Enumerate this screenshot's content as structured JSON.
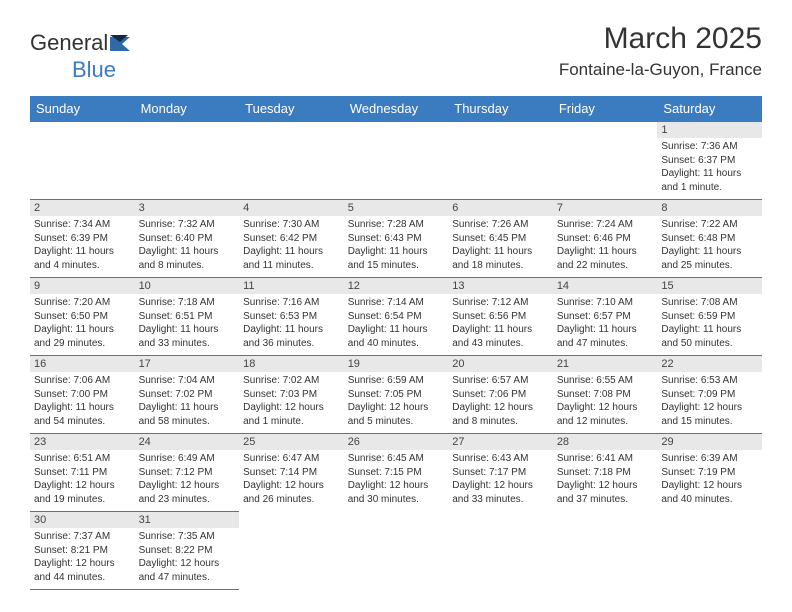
{
  "logo": {
    "part1": "General",
    "part2": "Blue"
  },
  "header": {
    "month_title": "March 2025",
    "location": "Fontaine-la-Guyon, France"
  },
  "colors": {
    "header_bg": "#3b7bbf",
    "header_fg": "#ffffff",
    "daynum_bg": "#e8e8e8",
    "border": "#3b7bbf"
  },
  "weekdays": [
    "Sunday",
    "Monday",
    "Tuesday",
    "Wednesday",
    "Thursday",
    "Friday",
    "Saturday"
  ],
  "weeks": [
    [
      null,
      null,
      null,
      null,
      null,
      null,
      {
        "n": "1",
        "sr": "Sunrise: 7:36 AM",
        "ss": "Sunset: 6:37 PM",
        "dl": "Daylight: 11 hours and 1 minute."
      }
    ],
    [
      {
        "n": "2",
        "sr": "Sunrise: 7:34 AM",
        "ss": "Sunset: 6:39 PM",
        "dl": "Daylight: 11 hours and 4 minutes."
      },
      {
        "n": "3",
        "sr": "Sunrise: 7:32 AM",
        "ss": "Sunset: 6:40 PM",
        "dl": "Daylight: 11 hours and 8 minutes."
      },
      {
        "n": "4",
        "sr": "Sunrise: 7:30 AM",
        "ss": "Sunset: 6:42 PM",
        "dl": "Daylight: 11 hours and 11 minutes."
      },
      {
        "n": "5",
        "sr": "Sunrise: 7:28 AM",
        "ss": "Sunset: 6:43 PM",
        "dl": "Daylight: 11 hours and 15 minutes."
      },
      {
        "n": "6",
        "sr": "Sunrise: 7:26 AM",
        "ss": "Sunset: 6:45 PM",
        "dl": "Daylight: 11 hours and 18 minutes."
      },
      {
        "n": "7",
        "sr": "Sunrise: 7:24 AM",
        "ss": "Sunset: 6:46 PM",
        "dl": "Daylight: 11 hours and 22 minutes."
      },
      {
        "n": "8",
        "sr": "Sunrise: 7:22 AM",
        "ss": "Sunset: 6:48 PM",
        "dl": "Daylight: 11 hours and 25 minutes."
      }
    ],
    [
      {
        "n": "9",
        "sr": "Sunrise: 7:20 AM",
        "ss": "Sunset: 6:50 PM",
        "dl": "Daylight: 11 hours and 29 minutes."
      },
      {
        "n": "10",
        "sr": "Sunrise: 7:18 AM",
        "ss": "Sunset: 6:51 PM",
        "dl": "Daylight: 11 hours and 33 minutes."
      },
      {
        "n": "11",
        "sr": "Sunrise: 7:16 AM",
        "ss": "Sunset: 6:53 PM",
        "dl": "Daylight: 11 hours and 36 minutes."
      },
      {
        "n": "12",
        "sr": "Sunrise: 7:14 AM",
        "ss": "Sunset: 6:54 PM",
        "dl": "Daylight: 11 hours and 40 minutes."
      },
      {
        "n": "13",
        "sr": "Sunrise: 7:12 AM",
        "ss": "Sunset: 6:56 PM",
        "dl": "Daylight: 11 hours and 43 minutes."
      },
      {
        "n": "14",
        "sr": "Sunrise: 7:10 AM",
        "ss": "Sunset: 6:57 PM",
        "dl": "Daylight: 11 hours and 47 minutes."
      },
      {
        "n": "15",
        "sr": "Sunrise: 7:08 AM",
        "ss": "Sunset: 6:59 PM",
        "dl": "Daylight: 11 hours and 50 minutes."
      }
    ],
    [
      {
        "n": "16",
        "sr": "Sunrise: 7:06 AM",
        "ss": "Sunset: 7:00 PM",
        "dl": "Daylight: 11 hours and 54 minutes."
      },
      {
        "n": "17",
        "sr": "Sunrise: 7:04 AM",
        "ss": "Sunset: 7:02 PM",
        "dl": "Daylight: 11 hours and 58 minutes."
      },
      {
        "n": "18",
        "sr": "Sunrise: 7:02 AM",
        "ss": "Sunset: 7:03 PM",
        "dl": "Daylight: 12 hours and 1 minute."
      },
      {
        "n": "19",
        "sr": "Sunrise: 6:59 AM",
        "ss": "Sunset: 7:05 PM",
        "dl": "Daylight: 12 hours and 5 minutes."
      },
      {
        "n": "20",
        "sr": "Sunrise: 6:57 AM",
        "ss": "Sunset: 7:06 PM",
        "dl": "Daylight: 12 hours and 8 minutes."
      },
      {
        "n": "21",
        "sr": "Sunrise: 6:55 AM",
        "ss": "Sunset: 7:08 PM",
        "dl": "Daylight: 12 hours and 12 minutes."
      },
      {
        "n": "22",
        "sr": "Sunrise: 6:53 AM",
        "ss": "Sunset: 7:09 PM",
        "dl": "Daylight: 12 hours and 15 minutes."
      }
    ],
    [
      {
        "n": "23",
        "sr": "Sunrise: 6:51 AM",
        "ss": "Sunset: 7:11 PM",
        "dl": "Daylight: 12 hours and 19 minutes."
      },
      {
        "n": "24",
        "sr": "Sunrise: 6:49 AM",
        "ss": "Sunset: 7:12 PM",
        "dl": "Daylight: 12 hours and 23 minutes."
      },
      {
        "n": "25",
        "sr": "Sunrise: 6:47 AM",
        "ss": "Sunset: 7:14 PM",
        "dl": "Daylight: 12 hours and 26 minutes."
      },
      {
        "n": "26",
        "sr": "Sunrise: 6:45 AM",
        "ss": "Sunset: 7:15 PM",
        "dl": "Daylight: 12 hours and 30 minutes."
      },
      {
        "n": "27",
        "sr": "Sunrise: 6:43 AM",
        "ss": "Sunset: 7:17 PM",
        "dl": "Daylight: 12 hours and 33 minutes."
      },
      {
        "n": "28",
        "sr": "Sunrise: 6:41 AM",
        "ss": "Sunset: 7:18 PM",
        "dl": "Daylight: 12 hours and 37 minutes."
      },
      {
        "n": "29",
        "sr": "Sunrise: 6:39 AM",
        "ss": "Sunset: 7:19 PM",
        "dl": "Daylight: 12 hours and 40 minutes."
      }
    ],
    [
      {
        "n": "30",
        "sr": "Sunrise: 7:37 AM",
        "ss": "Sunset: 8:21 PM",
        "dl": "Daylight: 12 hours and 44 minutes."
      },
      {
        "n": "31",
        "sr": "Sunrise: 7:35 AM",
        "ss": "Sunset: 8:22 PM",
        "dl": "Daylight: 12 hours and 47 minutes."
      },
      null,
      null,
      null,
      null,
      null
    ]
  ]
}
